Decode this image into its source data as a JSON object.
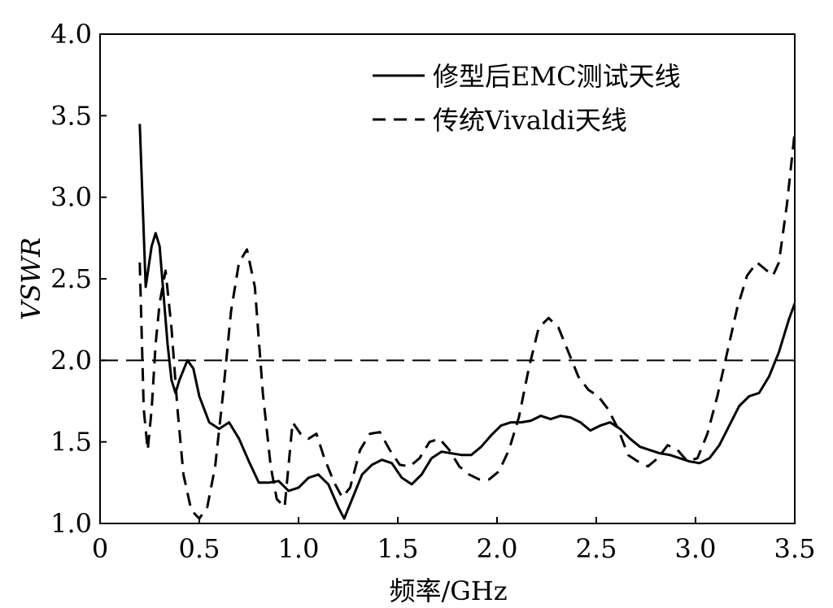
{
  "chart_data": {
    "type": "line",
    "title": "",
    "xlabel": "频率/GHz",
    "ylabel": "VSWR",
    "xlim": [
      0,
      3.5
    ],
    "ylim": [
      1.0,
      4.0
    ],
    "xticks": [
      0,
      0.5,
      1.0,
      1.5,
      2.0,
      2.5,
      3.0,
      3.5
    ],
    "xtick_labels": [
      "0",
      "0.5",
      "1.0",
      "1.5",
      "2.0",
      "2.5",
      "3.0",
      "3.5"
    ],
    "yticks": [
      1.0,
      1.5,
      2.0,
      2.5,
      3.0,
      3.5,
      4.0
    ],
    "ytick_labels": [
      "1.0",
      "1.5",
      "2.0",
      "2.5",
      "3.0",
      "3.5",
      "4.0"
    ],
    "grid": false,
    "legend_position": "top-right",
    "reference_line": {
      "y": 2.0,
      "style": "dashed"
    },
    "series": [
      {
        "name": "修型后EMC测试天线",
        "style": "solid",
        "x": [
          0.2,
          0.23,
          0.26,
          0.28,
          0.3,
          0.32,
          0.34,
          0.36,
          0.38,
          0.4,
          0.44,
          0.47,
          0.5,
          0.55,
          0.6,
          0.65,
          0.7,
          0.75,
          0.8,
          0.85,
          0.9,
          0.95,
          1.0,
          1.05,
          1.1,
          1.15,
          1.2,
          1.23,
          1.27,
          1.32,
          1.37,
          1.42,
          1.47,
          1.52,
          1.57,
          1.62,
          1.67,
          1.72,
          1.77,
          1.82,
          1.87,
          1.92,
          1.97,
          2.02,
          2.07,
          2.12,
          2.17,
          2.22,
          2.27,
          2.32,
          2.37,
          2.42,
          2.47,
          2.52,
          2.57,
          2.62,
          2.67,
          2.72,
          2.77,
          2.82,
          2.87,
          2.92,
          2.97,
          3.02,
          3.07,
          3.12,
          3.17,
          3.22,
          3.27,
          3.32,
          3.37,
          3.42,
          3.47,
          3.5
        ],
        "y": [
          3.45,
          2.45,
          2.7,
          2.78,
          2.7,
          2.4,
          2.1,
          1.88,
          1.8,
          1.88,
          2.0,
          1.95,
          1.78,
          1.62,
          1.58,
          1.62,
          1.52,
          1.38,
          1.25,
          1.25,
          1.26,
          1.2,
          1.22,
          1.28,
          1.3,
          1.24,
          1.1,
          1.03,
          1.15,
          1.3,
          1.36,
          1.39,
          1.37,
          1.28,
          1.24,
          1.3,
          1.4,
          1.44,
          1.43,
          1.42,
          1.42,
          1.47,
          1.54,
          1.6,
          1.62,
          1.62,
          1.63,
          1.66,
          1.64,
          1.66,
          1.65,
          1.62,
          1.57,
          1.6,
          1.62,
          1.58,
          1.52,
          1.47,
          1.45,
          1.43,
          1.42,
          1.4,
          1.38,
          1.37,
          1.4,
          1.48,
          1.6,
          1.72,
          1.78,
          1.8,
          1.9,
          2.05,
          2.25,
          2.35
        ]
      },
      {
        "name": "传统Vivaldi天线",
        "style": "dashed",
        "x": [
          0.2,
          0.22,
          0.24,
          0.26,
          0.28,
          0.3,
          0.33,
          0.36,
          0.39,
          0.42,
          0.46,
          0.5,
          0.54,
          0.58,
          0.62,
          0.66,
          0.7,
          0.74,
          0.78,
          0.82,
          0.86,
          0.89,
          0.93,
          0.97,
          1.01,
          1.05,
          1.09,
          1.13,
          1.18,
          1.22,
          1.26,
          1.31,
          1.36,
          1.41,
          1.46,
          1.51,
          1.56,
          1.61,
          1.66,
          1.71,
          1.76,
          1.81,
          1.86,
          1.91,
          1.96,
          2.01,
          2.06,
          2.11,
          2.16,
          2.21,
          2.26,
          2.31,
          2.36,
          2.41,
          2.46,
          2.51,
          2.56,
          2.61,
          2.66,
          2.71,
          2.76,
          2.81,
          2.86,
          2.91,
          2.96,
          3.01,
          3.06,
          3.11,
          3.16,
          3.21,
          3.26,
          3.31,
          3.36,
          3.39,
          3.42,
          3.46,
          3.5
        ],
        "y": [
          2.6,
          1.7,
          1.45,
          1.7,
          2.1,
          2.35,
          2.55,
          2.2,
          1.7,
          1.3,
          1.08,
          1.03,
          1.1,
          1.35,
          1.8,
          2.3,
          2.6,
          2.68,
          2.45,
          1.8,
          1.35,
          1.15,
          1.1,
          1.62,
          1.55,
          1.52,
          1.55,
          1.4,
          1.25,
          1.16,
          1.22,
          1.45,
          1.55,
          1.56,
          1.45,
          1.36,
          1.35,
          1.4,
          1.5,
          1.52,
          1.45,
          1.35,
          1.3,
          1.27,
          1.27,
          1.32,
          1.45,
          1.65,
          1.95,
          2.2,
          2.26,
          2.2,
          2.05,
          1.9,
          1.82,
          1.78,
          1.7,
          1.58,
          1.42,
          1.38,
          1.35,
          1.4,
          1.48,
          1.45,
          1.38,
          1.4,
          1.55,
          1.78,
          2.05,
          2.32,
          2.52,
          2.6,
          2.55,
          2.52,
          2.6,
          2.95,
          3.4
        ]
      }
    ]
  }
}
